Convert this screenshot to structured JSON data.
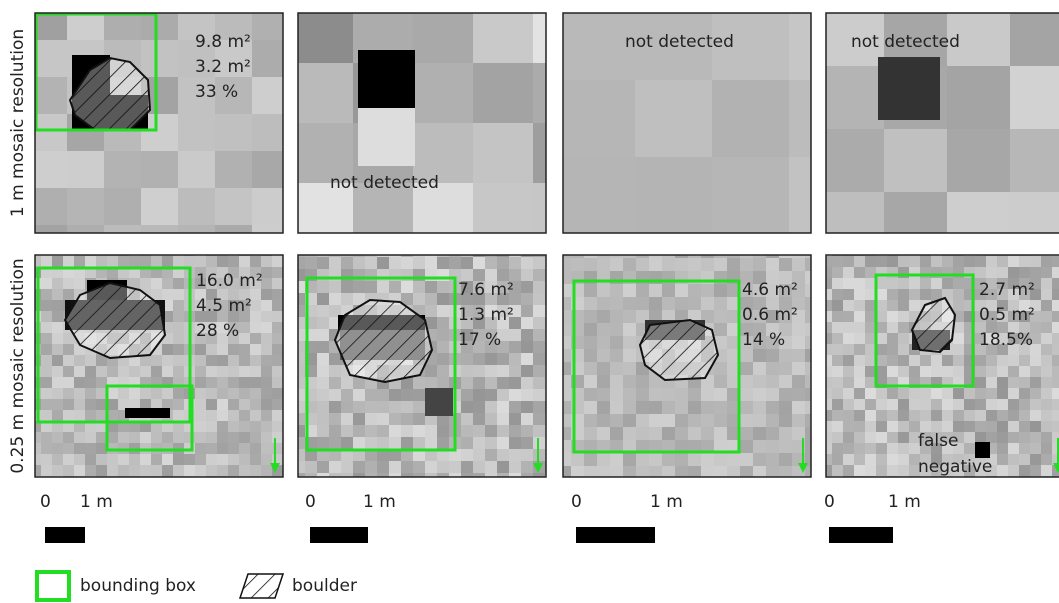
{
  "row_labels": [
    "1 m mosaic resolution",
    "0.25 m mosaic resolution"
  ],
  "panels": [
    [
      {
        "lines": [
          "9.8 m²",
          "3.2 m²",
          "33 %"
        ]
      },
      {
        "lines": [
          "not detected"
        ]
      },
      {
        "lines": [
          "not detected"
        ]
      },
      {
        "lines": [
          "not detected"
        ]
      }
    ],
    [
      {
        "lines": [
          "16.0 m²",
          "4.5 m²",
          "28 %"
        ]
      },
      {
        "lines": [
          "7.6 m²",
          "1.3 m²",
          "17 %"
        ]
      },
      {
        "lines": [
          "4.6 m²",
          "0.6 m²",
          "14 %"
        ]
      },
      {
        "lines": [
          "2.7 m²",
          "0.5 m²",
          "18.5%",
          "false",
          "negative"
        ]
      }
    ]
  ],
  "scale_bars": [
    {
      "zero": "0",
      "unit": "1 m"
    },
    {
      "zero": "0",
      "unit": "1 m"
    },
    {
      "zero": "0",
      "unit": "1 m"
    },
    {
      "zero": "0",
      "unit": "1 m"
    }
  ],
  "legend": [
    "bounding box",
    "boulder"
  ]
}
